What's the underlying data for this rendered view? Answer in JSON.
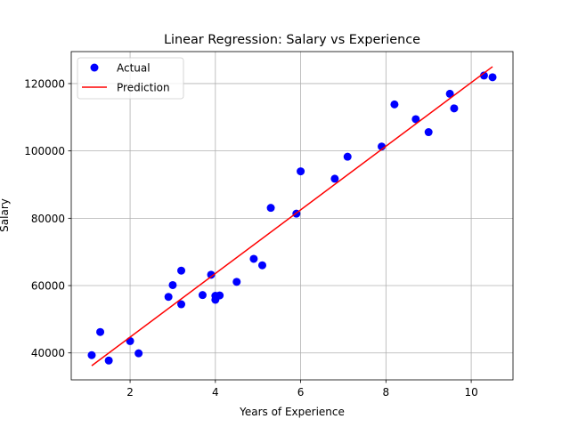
{
  "chart_data": {
    "type": "scatter",
    "title": "Linear Regression: Salary vs Experience",
    "xlabel": "Years of Experience",
    "ylabel": "Salary",
    "xlim": [
      0.62,
      10.98
    ],
    "ylim": [
      32000,
      129500
    ],
    "x_ticks": [
      2,
      4,
      6,
      8,
      10
    ],
    "y_ticks": [
      40000,
      60000,
      80000,
      100000,
      120000
    ],
    "grid": true,
    "legend_position": "upper-left",
    "series": [
      {
        "name": "Actual",
        "kind": "scatter",
        "color": "#0000ff",
        "points": [
          [
            1.1,
            39343
          ],
          [
            1.3,
            46205
          ],
          [
            1.5,
            37731
          ],
          [
            2.0,
            43525
          ],
          [
            2.2,
            39891
          ],
          [
            2.9,
            56642
          ],
          [
            3.0,
            60150
          ],
          [
            3.2,
            54445
          ],
          [
            3.2,
            64445
          ],
          [
            3.7,
            57189
          ],
          [
            3.9,
            63218
          ],
          [
            4.0,
            55794
          ],
          [
            4.0,
            56957
          ],
          [
            4.1,
            57081
          ],
          [
            4.5,
            61111
          ],
          [
            4.9,
            67938
          ],
          [
            5.1,
            66029
          ],
          [
            5.3,
            83088
          ],
          [
            5.9,
            81363
          ],
          [
            6.0,
            93940
          ],
          [
            6.8,
            91738
          ],
          [
            7.1,
            98273
          ],
          [
            7.9,
            101302
          ],
          [
            8.2,
            113812
          ],
          [
            8.7,
            109431
          ],
          [
            9.0,
            105582
          ],
          [
            9.5,
            116969
          ],
          [
            9.6,
            112635
          ],
          [
            10.3,
            122391
          ],
          [
            10.5,
            121872
          ]
        ]
      },
      {
        "name": "Prediction",
        "kind": "line",
        "color": "#ff0000",
        "points": [
          [
            1.1,
            36188
          ],
          [
            10.5,
            125024
          ]
        ]
      }
    ]
  }
}
